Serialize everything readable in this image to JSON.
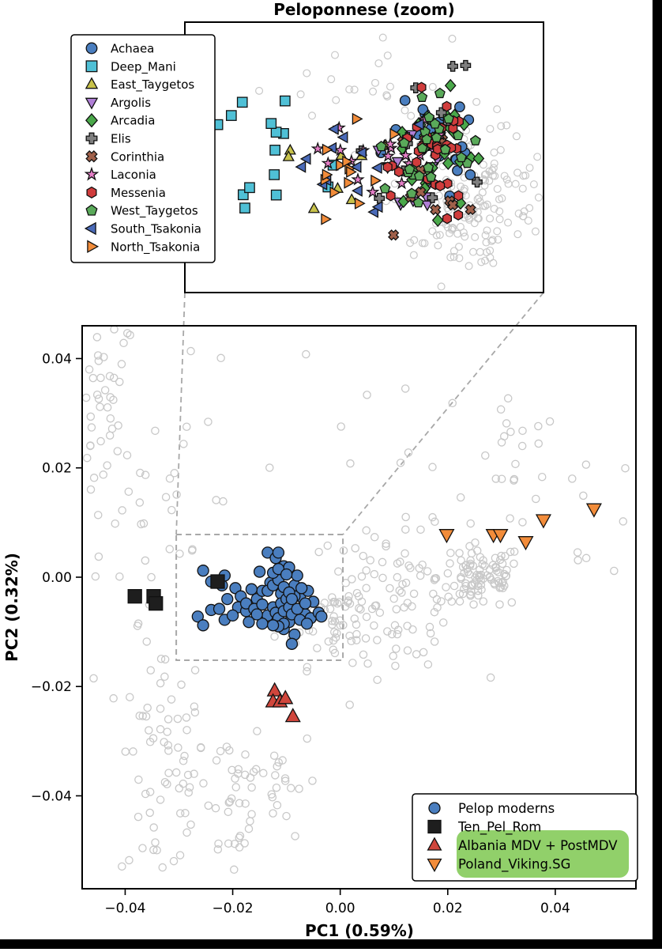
{
  "chart_data": [
    {
      "type": "scatter",
      "panel": "main",
      "title": "",
      "xlabel": "PC1 (0.59%)",
      "ylabel": "PC2 (0.32%)",
      "xlim": [
        -0.048,
        0.055
      ],
      "ylim": [
        -0.057,
        0.046
      ],
      "xticks": [
        -0.04,
        -0.02,
        0.0,
        0.02,
        0.04
      ],
      "xtick_labels": [
        "−0.04",
        "−0.02",
        "0.00",
        "0.02",
        "0.04"
      ],
      "yticks": [
        0.04,
        0.02,
        0.0,
        -0.02,
        -0.04
      ],
      "ytick_labels": [
        "0.04",
        "0.02",
        "0.00",
        "−0.02",
        "−0.04"
      ],
      "grid": false,
      "legend_position": "lower-right",
      "zoom_region": {
        "x": [
          -0.0305,
          0.0005
        ],
        "y": [
          -0.0152,
          0.0078
        ]
      },
      "colors": {
        "background_points": "#c8c8c8",
        "pelop": "#4a7ebf",
        "ten_pel": "#1e1e1e",
        "albania": "#d0463c",
        "poland": "#f28c3a",
        "highlight": "#7ec850"
      },
      "series": [
        {
          "name": "Pelop moderns",
          "marker": "circle",
          "color": "#4a7ebf",
          "points": [
            [
              -0.0255,
              0.0012
            ],
            [
              -0.024,
              -0.0008
            ],
            [
              -0.022,
              -0.0015
            ],
            [
              -0.0215,
              0.0003
            ],
            [
              -0.021,
              -0.004
            ],
            [
              -0.0195,
              -0.002
            ],
            [
              -0.019,
              -0.0055
            ],
            [
              -0.0175,
              -0.0062
            ],
            [
              -0.0265,
              -0.0072
            ],
            [
              -0.024,
              -0.006
            ],
            [
              -0.0215,
              -0.0078
            ],
            [
              -0.017,
              -0.0082
            ],
            [
              -0.0155,
              -0.004
            ],
            [
              -0.015,
              0.001
            ],
            [
              -0.0145,
              -0.0025
            ],
            [
              -0.0135,
              0.0045
            ],
            [
              -0.013,
              -0.001
            ],
            [
              -0.012,
              0.0035
            ],
            [
              -0.0115,
              0.0045
            ],
            [
              -0.011,
              -0.003
            ],
            [
              -0.0105,
              0.002
            ],
            [
              -0.0095,
              0.0018
            ],
            [
              -0.0085,
              -0.0015
            ],
            [
              -0.008,
              0.0003
            ],
            [
              -0.0075,
              -0.0035
            ],
            [
              -0.007,
              -0.0055
            ],
            [
              -0.0065,
              -0.0068
            ],
            [
              -0.006,
              -0.0025
            ],
            [
              -0.0055,
              -0.0075
            ],
            [
              -0.005,
              -0.0045
            ],
            [
              -0.004,
              -0.0065
            ],
            [
              -0.0035,
              -0.0072
            ],
            [
              -0.0095,
              -0.0082
            ],
            [
              -0.0105,
              -0.0095
            ],
            [
              -0.0085,
              -0.0105
            ],
            [
              -0.009,
              -0.0122
            ],
            [
              -0.0135,
              -0.007
            ],
            [
              -0.0145,
              -0.0085
            ],
            [
              -0.0125,
              -0.0055
            ],
            [
              -0.012,
              -0.0065
            ],
            [
              -0.0115,
              -0.0075
            ],
            [
              -0.011,
              -0.0048
            ],
            [
              -0.0105,
              -0.0062
            ],
            [
              -0.01,
              -0.004
            ],
            [
              -0.0095,
              -0.0055
            ],
            [
              -0.009,
              -0.0068
            ],
            [
              -0.0085,
              -0.0035
            ],
            [
              -0.008,
              -0.0058
            ],
            [
              -0.0075,
              -0.0078
            ],
            [
              -0.0135,
              -0.0025
            ],
            [
              -0.0125,
              -0.0015
            ],
            [
              -0.0115,
              -0.0005
            ],
            [
              -0.0105,
              -0.0018
            ],
            [
              -0.0095,
              -0.0028
            ],
            [
              -0.009,
              -0.004
            ],
            [
              -0.0125,
              0.0008
            ],
            [
              -0.0115,
              0.0015
            ],
            [
              -0.01,
              0.0005
            ],
            [
              -0.0185,
              -0.0035
            ],
            [
              -0.0175,
              -0.0048
            ],
            [
              -0.016,
              -0.0058
            ],
            [
              -0.0165,
              -0.0022
            ],
            [
              -0.0155,
              -0.0068
            ],
            [
              -0.0145,
              -0.005
            ],
            [
              -0.0105,
              -0.0085
            ],
            [
              -0.0115,
              -0.009
            ],
            [
              -0.0125,
              -0.0088
            ],
            [
              -0.02,
              -0.007
            ],
            [
              -0.0225,
              -0.0058
            ],
            [
              -0.0255,
              -0.0088
            ],
            [
              -0.0065,
              -0.0048
            ],
            [
              -0.0072,
              -0.002
            ],
            [
              -0.0062,
              -0.0085
            ]
          ]
        },
        {
          "name": "Ten_Pel_Rom",
          "marker": "square",
          "color": "#1e1e1e",
          "points": [
            [
              -0.0382,
              -0.0035
            ],
            [
              -0.0347,
              -0.0035
            ],
            [
              -0.0343,
              -0.0048
            ],
            [
              -0.0228,
              -0.0008
            ]
          ]
        },
        {
          "name": "Albania MDV + PostMDV",
          "marker": "triangle-up",
          "color": "#d0463c",
          "points": [
            [
              -0.0122,
              -0.0208
            ],
            [
              -0.0125,
              -0.0228
            ],
            [
              -0.0112,
              -0.0228
            ],
            [
              -0.0102,
              -0.0222
            ],
            [
              -0.0088,
              -0.0255
            ]
          ]
        },
        {
          "name": "Poland_Viking.SG",
          "marker": "triangle-down",
          "color": "#f28c3a",
          "points": [
            [
              0.0198,
              0.0078
            ],
            [
              0.0285,
              0.0078
            ],
            [
              0.0298,
              0.0078
            ],
            [
              0.0345,
              0.0065
            ],
            [
              0.0378,
              0.0105
            ],
            [
              0.0472,
              0.0125
            ]
          ]
        }
      ]
    },
    {
      "type": "scatter",
      "panel": "inset",
      "title": "Peloponnese (zoom)",
      "xlabel": "",
      "ylabel": "",
      "legend_position": "upper-left",
      "series": [
        {
          "name": "Achaea",
          "marker": "circle",
          "color": "#4a7ebf"
        },
        {
          "name": "Deep_Mani",
          "marker": "square",
          "color": "#4fc0d6"
        },
        {
          "name": "East_Taygetos",
          "marker": "triangle-up",
          "color": "#c8c24a"
        },
        {
          "name": "Argolis",
          "marker": "triangle-down",
          "color": "#b07fd6"
        },
        {
          "name": "Arcadia",
          "marker": "diamond",
          "color": "#4aa84a"
        },
        {
          "name": "Elis",
          "marker": "plus",
          "color": "#7f7f7f"
        },
        {
          "name": "Corinthia",
          "marker": "x",
          "color": "#a0604a"
        },
        {
          "name": "Laconia",
          "marker": "star",
          "color": "#e67fc8"
        },
        {
          "name": "Messenia",
          "marker": "hexagon",
          "color": "#d03c3c"
        },
        {
          "name": "West_Taygetos",
          "marker": "pentagon",
          "color": "#5aaa5a"
        },
        {
          "name": "South_Tsakonia",
          "marker": "triangle-left",
          "color": "#4a6ab8"
        },
        {
          "name": "North_Tsakonia",
          "marker": "triangle-right",
          "color": "#f28c3a"
        }
      ]
    }
  ]
}
